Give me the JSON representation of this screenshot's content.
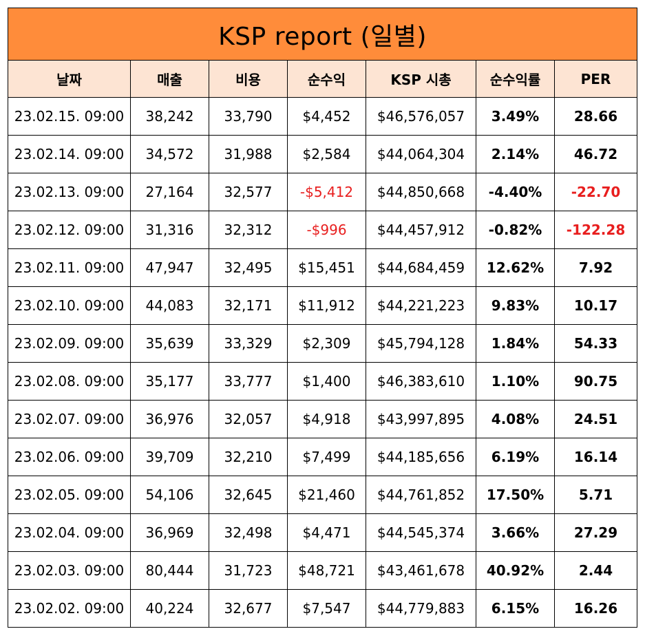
{
  "title": "KSP report (일별)",
  "columns": [
    "날짜",
    "매출",
    "비용",
    "순수익",
    "KSP 시총",
    "순수익률",
    "PER"
  ],
  "rows": [
    {
      "date": "23.02.15. 09:00",
      "sales": "38,242",
      "cost": "33,790",
      "net": "$4,452",
      "cap": "$46,576,057",
      "margin": "3.49%",
      "per": "28.66",
      "net_neg": false,
      "per_neg": false
    },
    {
      "date": "23.02.14. 09:00",
      "sales": "34,572",
      "cost": "31,988",
      "net": "$2,584",
      "cap": "$44,064,304",
      "margin": "2.14%",
      "per": "46.72",
      "net_neg": false,
      "per_neg": false
    },
    {
      "date": "23.02.13. 09:00",
      "sales": "27,164",
      "cost": "32,577",
      "net": "-$5,412",
      "cap": "$44,850,668",
      "margin": "-4.40%",
      "per": "-22.70",
      "net_neg": true,
      "per_neg": true
    },
    {
      "date": "23.02.12. 09:00",
      "sales": "31,316",
      "cost": "32,312",
      "net": "-$996",
      "cap": "$44,457,912",
      "margin": "-0.82%",
      "per": "-122.28",
      "net_neg": true,
      "per_neg": true
    },
    {
      "date": "23.02.11. 09:00",
      "sales": "47,947",
      "cost": "32,495",
      "net": "$15,451",
      "cap": "$44,684,459",
      "margin": "12.62%",
      "per": "7.92",
      "net_neg": false,
      "per_neg": false
    },
    {
      "date": "23.02.10. 09:00",
      "sales": "44,083",
      "cost": "32,171",
      "net": "$11,912",
      "cap": "$44,221,223",
      "margin": "9.83%",
      "per": "10.17",
      "net_neg": false,
      "per_neg": false
    },
    {
      "date": "23.02.09. 09:00",
      "sales": "35,639",
      "cost": "33,329",
      "net": "$2,309",
      "cap": "$45,794,128",
      "margin": "1.84%",
      "per": "54.33",
      "net_neg": false,
      "per_neg": false
    },
    {
      "date": "23.02.08. 09:00",
      "sales": "35,177",
      "cost": "33,777",
      "net": "$1,400",
      "cap": "$46,383,610",
      "margin": "1.10%",
      "per": "90.75",
      "net_neg": false,
      "per_neg": false
    },
    {
      "date": "23.02.07. 09:00",
      "sales": "36,976",
      "cost": "32,057",
      "net": "$4,918",
      "cap": "$43,997,895",
      "margin": "4.08%",
      "per": "24.51",
      "net_neg": false,
      "per_neg": false
    },
    {
      "date": "23.02.06. 09:00",
      "sales": "39,709",
      "cost": "32,210",
      "net": "$7,499",
      "cap": "$44,185,656",
      "margin": "6.19%",
      "per": "16.14",
      "net_neg": false,
      "per_neg": false
    },
    {
      "date": "23.02.05. 09:00",
      "sales": "54,106",
      "cost": "32,645",
      "net": "$21,460",
      "cap": "$44,761,852",
      "margin": "17.50%",
      "per": "5.71",
      "net_neg": false,
      "per_neg": false
    },
    {
      "date": "23.02.04. 09:00",
      "sales": "36,969",
      "cost": "32,498",
      "net": "$4,471",
      "cap": "$44,545,374",
      "margin": "3.66%",
      "per": "27.29",
      "net_neg": false,
      "per_neg": false
    },
    {
      "date": "23.02.03. 09:00",
      "sales": "80,444",
      "cost": "31,723",
      "net": "$48,721",
      "cap": "$43,461,678",
      "margin": "40.92%",
      "per": "2.44",
      "net_neg": false,
      "per_neg": false
    },
    {
      "date": "23.02.02. 09:00",
      "sales": "40,224",
      "cost": "32,677",
      "net": "$7,547",
      "cap": "$44,779,883",
      "margin": "6.15%",
      "per": "16.26",
      "net_neg": false,
      "per_neg": false
    }
  ],
  "colors": {
    "title_bg": "#ff8c3a",
    "header_bg": "#fde4d3",
    "negative": "#e81e1e",
    "border": "#000000"
  }
}
